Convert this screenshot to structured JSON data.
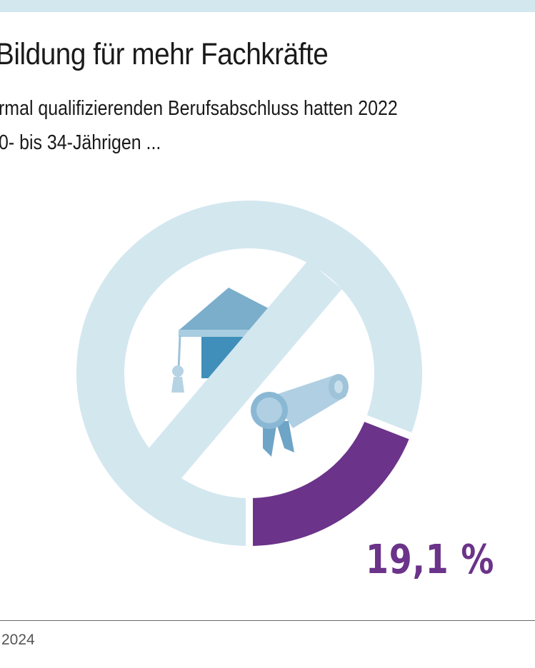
{
  "title": "Bildung für mehr Fachkräfte",
  "subtitle_lines": [
    "rmal qualifizierenden Berufsabschluss hatten 2022",
    "0- bis 34-Jährigen ..."
  ],
  "footer": {
    "source_fragment": "2024"
  },
  "colors": {
    "highlight": "#6b3389",
    "ring": "#d3e7ef",
    "icon_cap": "#7aaecb",
    "icon_cap_dark": "#3f8fba",
    "icon_scroll": "#b0cfe2",
    "icon_ribbon": "#6ea4c6"
  },
  "icons": [
    "graduation-cap-icon",
    "diploma-scroll-icon",
    "rosette-icon",
    "prohibition-sign-icon"
  ],
  "chart_data": {
    "type": "pie",
    "variant": "donut",
    "slices": [
      {
        "value": 19.1,
        "color": "#6b3389"
      },
      {
        "value": 80.9,
        "color": "#d3e7ef"
      }
    ],
    "value_label": "19,1 %",
    "unit": "%"
  }
}
